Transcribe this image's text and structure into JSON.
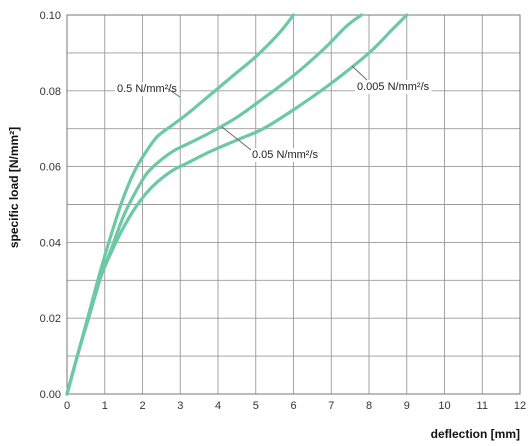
{
  "chart_data": {
    "type": "line",
    "xlabel": "deflection [mm]",
    "ylabel": "specific load [N/mm²]",
    "xlim": [
      0,
      12
    ],
    "ylim": [
      0,
      0.1
    ],
    "xticks": [
      0,
      1,
      2,
      3,
      4,
      5,
      6,
      7,
      8,
      9,
      10,
      11,
      12
    ],
    "yticks": [
      "0.00",
      "0.02",
      "0.04",
      "0.06",
      "0.08",
      "0.10"
    ],
    "grid": true,
    "line_color": "#6cc9a4",
    "series": [
      {
        "name": "0.5 N/mm²/s",
        "x": [
          0,
          0.3,
          0.6,
          0.9,
          1.2,
          1.5,
          1.8,
          2.1,
          2.4,
          2.8,
          3.2,
          3.8,
          4.4,
          5.0,
          5.6,
          6.0
        ],
        "y": [
          0,
          0.011,
          0.022,
          0.033,
          0.043,
          0.052,
          0.059,
          0.064,
          0.068,
          0.071,
          0.074,
          0.079,
          0.084,
          0.089,
          0.095,
          0.1
        ]
      },
      {
        "name": "0.05 N/mm²/s",
        "x": [
          0,
          0.3,
          0.6,
          0.9,
          1.2,
          1.5,
          1.8,
          2.1,
          2.4,
          2.8,
          3.2,
          3.8,
          4.5,
          5.2,
          6.0,
          6.8,
          7.4,
          7.8
        ],
        "y": [
          0,
          0.011,
          0.021,
          0.031,
          0.039,
          0.047,
          0.053,
          0.058,
          0.061,
          0.064,
          0.066,
          0.069,
          0.073,
          0.078,
          0.084,
          0.091,
          0.097,
          0.1
        ]
      },
      {
        "name": "0.005 N/mm²/s",
        "x": [
          0,
          0.3,
          0.6,
          0.9,
          1.2,
          1.5,
          1.8,
          2.1,
          2.4,
          2.8,
          3.2,
          3.8,
          4.5,
          5.2,
          6.0,
          7.0,
          8.0,
          8.6,
          9.0
        ],
        "y": [
          0,
          0.011,
          0.021,
          0.031,
          0.038,
          0.044,
          0.049,
          0.053,
          0.056,
          0.059,
          0.061,
          0.064,
          0.067,
          0.07,
          0.075,
          0.082,
          0.09,
          0.096,
          0.1
        ]
      }
    ],
    "annotations": [
      {
        "text": "0.5 N/mm²/s",
        "series": 0,
        "anchor_x": 2.55,
        "anchor_y": 0.0805
      },
      {
        "text": "0.05 N/mm²/s",
        "series": 1,
        "anchor_x": 6.0,
        "anchor_y": 0.0635
      },
      {
        "text": "0.005 N/mm²/s",
        "series": 2,
        "anchor_x": 9.85,
        "anchor_y": 0.081
      }
    ]
  }
}
